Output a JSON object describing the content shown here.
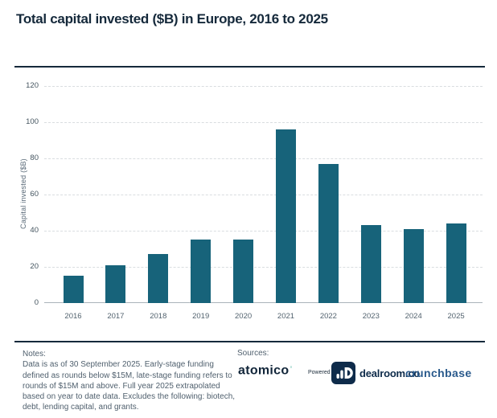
{
  "page": {
    "title": "Total capital invested ($B) in Europe, 2016 to 2025"
  },
  "chart_data": {
    "type": "bar",
    "title": "Total capital invested ($B) in Europe, 2016 to 2025",
    "categories": [
      "2016",
      "2017",
      "2018",
      "2019",
      "2020",
      "2021",
      "2022",
      "2023",
      "2024",
      "2025"
    ],
    "values": [
      15,
      21,
      27,
      35,
      35,
      96,
      77,
      43,
      41,
      44
    ],
    "xlabel": "",
    "ylabel": "Capital invested ($B)",
    "yticks": [
      0,
      20,
      40,
      60,
      80,
      100,
      120
    ],
    "ylim": [
      0,
      120
    ],
    "grid": "dashed horizontal",
    "legend": "none",
    "bar_color": "#17637a"
  },
  "footer": {
    "notes_label": "Notes:",
    "notes_text": "Data is as of 30 September 2025. Early-stage funding defined as rounds below $15M, late-stage funding refers to rounds of $15M and above. Full year 2025 extrapolated based on year to date data. Excludes the following: biotech, debt, lending capital, and grants.",
    "sources_label": "Sources:",
    "logos": {
      "atomico": "atomico",
      "atomico_mark": "◦",
      "powered_by": "Powered by",
      "dealroom": "dealroom.co",
      "crunchbase": "crunchbase"
    }
  },
  "colors": {
    "bar": "#17637a",
    "title": "#15293b",
    "axis_text": "#53636f",
    "rule": "#15293b",
    "gridline": "#d9dde0",
    "atomico_mark": "#2aa58f",
    "dealroom_navy": "#0e2b4a",
    "crunchbase_blue": "#2a5a8c"
  }
}
